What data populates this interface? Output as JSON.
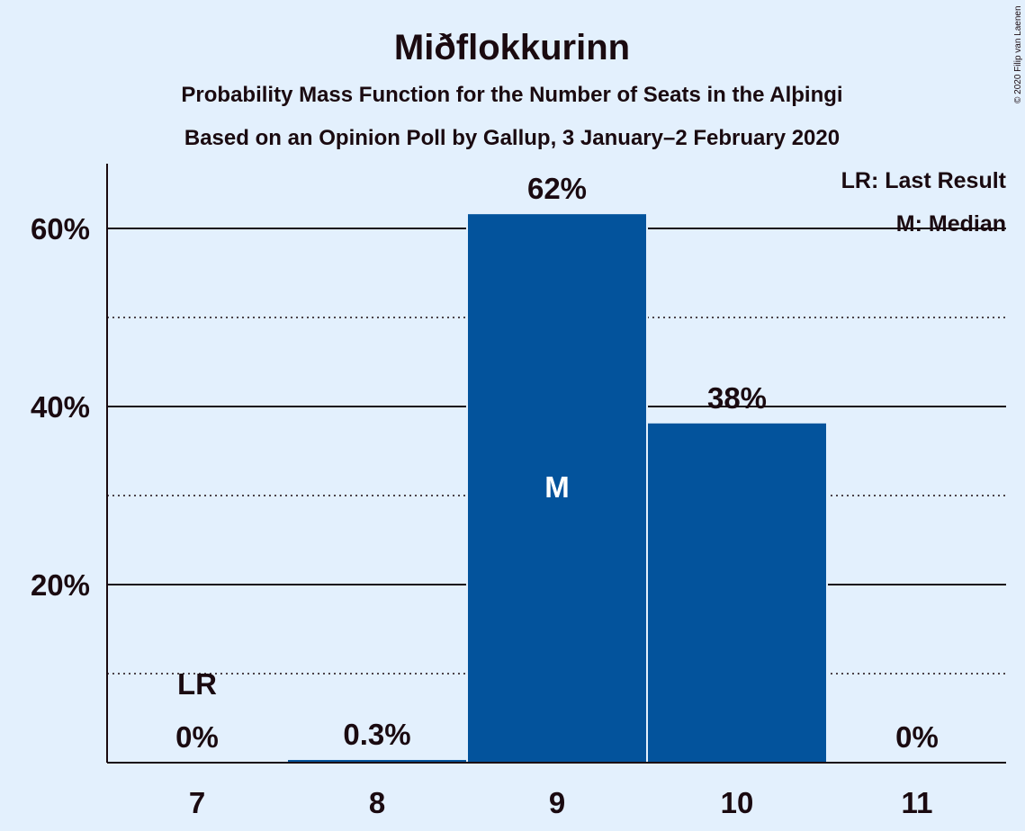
{
  "chart_data": {
    "type": "bar",
    "title": "Miðflokkurinn",
    "subtitle": "Probability Mass Function for the Number of Seats in the Alþingi",
    "subtitle2": "Based on an Opinion Poll by Gallup, 3 January–2 February 2020",
    "categories": [
      "7",
      "8",
      "9",
      "10",
      "11"
    ],
    "values": [
      0,
      0.3,
      61.6,
      38.1,
      0
    ],
    "value_labels": [
      "0%",
      "0.3%",
      "62%",
      "38%",
      "0%"
    ],
    "ylim": [
      0,
      67
    ],
    "y_ticks": [
      {
        "value": 20,
        "label": "20%"
      },
      {
        "value": 40,
        "label": "40%"
      },
      {
        "value": 60,
        "label": "60%"
      }
    ],
    "y_minor_ticks": [
      10,
      30,
      50
    ],
    "last_result": {
      "category": "7",
      "label": "LR"
    },
    "median": {
      "category": "9",
      "label": "M"
    },
    "legend": [
      "LR: Last Result",
      "M: Median"
    ],
    "legend_position": "top-right",
    "copyright": "© 2020 Filip van Laenen",
    "colors": {
      "bar": "#03539c",
      "background": "#e3f0fd",
      "text": "#1a0a10"
    }
  }
}
